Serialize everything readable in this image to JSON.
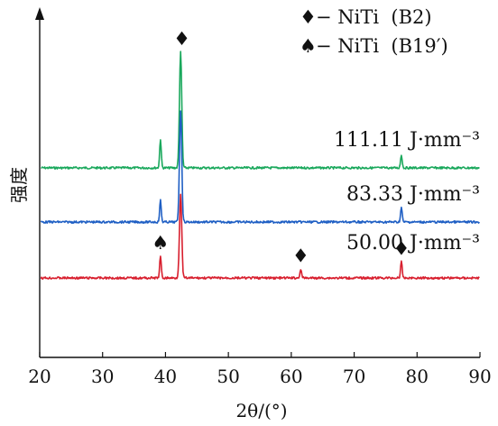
{
  "chart_data": {
    "type": "line",
    "xlabel": "2θ/(°)",
    "ylabel": "强度",
    "xlim": [
      20,
      90
    ],
    "x_ticks": [
      "20",
      "30",
      "40",
      "50",
      "60",
      "70",
      "80",
      "90"
    ],
    "grid": false,
    "legend": {
      "placement": "top-right",
      "entries": [
        {
          "symbol": "♦",
          "text": "− NiTi  (B2)"
        },
        {
          "symbol": "♠",
          "text": "− NiTi  (B19′)"
        }
      ]
    },
    "series": [
      {
        "name": "111.11 J·mm⁻³",
        "color": "#1aa85c",
        "peaks": [
          {
            "x": 39.2,
            "height": 0.4
          },
          {
            "x": 42.4,
            "height": 1.6
          },
          {
            "x": 77.5,
            "height": 0.18
          }
        ]
      },
      {
        "name": "83.33 J·mm⁻³",
        "color": "#1f5fc4",
        "peaks": [
          {
            "x": 39.2,
            "height": 0.3
          },
          {
            "x": 42.4,
            "height": 1.55
          },
          {
            "x": 77.5,
            "height": 0.2
          }
        ]
      },
      {
        "name": "50.00 J·mm⁻³",
        "color": "#d81f2e",
        "peaks": [
          {
            "x": 39.2,
            "height": 0.3
          },
          {
            "x": 42.4,
            "height": 1.15
          },
          {
            "x": 61.5,
            "height": 0.12
          },
          {
            "x": 77.5,
            "height": 0.22
          }
        ]
      }
    ],
    "annotations": [
      {
        "symbol": "♦",
        "x": 42.6,
        "target": "top"
      },
      {
        "symbol": "♠",
        "x": 39.2,
        "target": "50.00 J·mm⁻³"
      },
      {
        "symbol": "♦",
        "x": 61.5,
        "target": "50.00 J·mm⁻³"
      },
      {
        "symbol": "♦",
        "x": 77.5,
        "target": "50.00 J·mm⁻³"
      }
    ]
  }
}
